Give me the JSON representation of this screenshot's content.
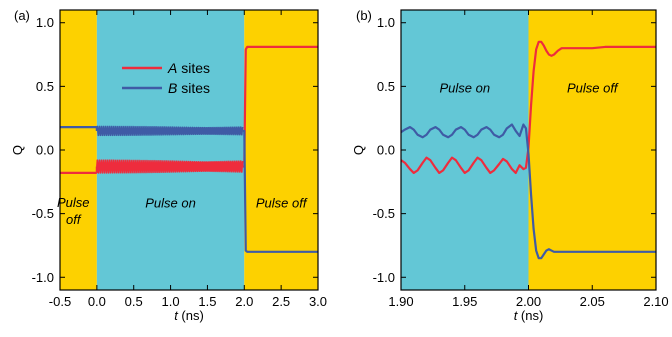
{
  "colors": {
    "pulse_off_bg": "#FDD100",
    "pulse_on_bg": "#63C7D6",
    "series_a": "#EE2C3D",
    "series_b": "#3F5BA5",
    "axis": "#000000"
  },
  "chart_data": [
    {
      "type": "line",
      "panel_label": "(a)",
      "xlabel_var": "t",
      "xlabel_unit": " (ns)",
      "ylabel": "Q",
      "xlim": [
        -0.5,
        3.0
      ],
      "ylim": [
        -1.1,
        1.1
      ],
      "x_ticks": [
        -0.5,
        0.0,
        0.5,
        1.0,
        1.5,
        2.0,
        2.5,
        3.0
      ],
      "x_tick_labels": [
        "-0.5",
        "0.0",
        "0.5",
        "1.0",
        "1.5",
        "2.0",
        "2.5",
        "3.0"
      ],
      "y_ticks": [
        1.0,
        0.5,
        0.0,
        -0.5,
        -1.0
      ],
      "y_tick_labels": [
        "1.0",
        "0.5",
        "0.0",
        "-0.5",
        "-1.0"
      ],
      "regions": [
        {
          "x0": -0.5,
          "x1": 0.0,
          "kind": "pulse_off",
          "label": "Pulse\noff",
          "label_x": -0.32,
          "label_y": -0.51
        },
        {
          "x0": 0.0,
          "x1": 2.0,
          "kind": "pulse_on",
          "label": "Pulse on",
          "label_x": 1.0,
          "label_y": -0.45
        },
        {
          "x0": 2.0,
          "x1": 3.0,
          "kind": "pulse_off",
          "label": "Pulse off",
          "label_x": 2.5,
          "label_y": -0.45
        }
      ],
      "legend": {
        "position": "upper-center",
        "entries": [
          {
            "italic": "A",
            "text": " sites",
            "color_key": "series_a"
          },
          {
            "italic": "B",
            "text": " sites",
            "color_key": "series_b"
          }
        ]
      },
      "series": [
        {
          "name": "A sites",
          "color_key": "series_a",
          "segments": [
            {
              "kind": "line",
              "x": [
                -0.5,
                0.0
              ],
              "y": [
                -0.18,
                -0.18
              ]
            },
            {
              "kind": "line",
              "x": [
                0.0,
                0.0
              ],
              "y": [
                -0.18,
                -0.13
              ]
            },
            {
              "kind": "oscillation",
              "x0": 0.0,
              "x1": 1.98,
              "center": -0.13,
              "amplitude": 0.05,
              "period": 0.027
            },
            {
              "kind": "line",
              "x": [
                1.98,
                2.0,
                2.02,
                2.04,
                3.0
              ],
              "y": [
                -0.13,
                -0.13,
                0.79,
                0.81,
                0.81
              ]
            }
          ]
        },
        {
          "name": "B sites",
          "color_key": "series_b",
          "segments": [
            {
              "kind": "line",
              "x": [
                -0.5,
                0.0
              ],
              "y": [
                0.18,
                0.18
              ]
            },
            {
              "kind": "line",
              "x": [
                0.0,
                0.0
              ],
              "y": [
                0.18,
                0.15
              ]
            },
            {
              "kind": "oscillation",
              "x0": 0.0,
              "x1": 1.98,
              "center": 0.15,
              "amplitude": 0.035,
              "period": 0.027
            },
            {
              "kind": "line",
              "x": [
                1.98,
                2.0,
                2.02,
                2.04,
                3.0
              ],
              "y": [
                0.15,
                0.15,
                -0.79,
                -0.8,
                -0.8
              ]
            }
          ]
        }
      ]
    },
    {
      "type": "line",
      "panel_label": "(b)",
      "xlabel_var": "t",
      "xlabel_unit": " (ns)",
      "ylabel": "Q",
      "xlim": [
        1.9,
        2.1
      ],
      "ylim": [
        -1.1,
        1.1
      ],
      "x_ticks": [
        1.9,
        1.95,
        2.0,
        2.05,
        2.1
      ],
      "x_tick_labels": [
        "1.90",
        "1.95",
        "2.00",
        "2.05",
        "2.10"
      ],
      "y_ticks": [
        1.0,
        0.5,
        0.0,
        -0.5,
        -1.0
      ],
      "y_tick_labels": [
        "1.0",
        "0.5",
        "0.0",
        "-0.5",
        "-1.0"
      ],
      "regions": [
        {
          "x0": 1.9,
          "x1": 2.0,
          "kind": "pulse_on",
          "label": "Pulse on",
          "label_x": 1.95,
          "label_y": 0.45
        },
        {
          "x0": 2.0,
          "x1": 2.1,
          "kind": "pulse_off",
          "label": "Pulse off",
          "label_x": 2.05,
          "label_y": 0.45
        }
      ],
      "series": [
        {
          "name": "A sites",
          "color_key": "series_a",
          "x": [
            1.9,
            1.903,
            1.907,
            1.91,
            1.913,
            1.917,
            1.92,
            1.923,
            1.927,
            1.93,
            1.933,
            1.937,
            1.94,
            1.943,
            1.947,
            1.95,
            1.953,
            1.957,
            1.96,
            1.963,
            1.967,
            1.97,
            1.973,
            1.977,
            1.98,
            1.983,
            1.987,
            1.99,
            1.993,
            1.996,
            1.998,
            2.0,
            2.002,
            2.004,
            2.006,
            2.008,
            2.01,
            2.012,
            2.014,
            2.016,
            2.018,
            2.02,
            2.023,
            2.026,
            2.03,
            2.035,
            2.04,
            2.045,
            2.05,
            2.06,
            2.07,
            2.08,
            2.09,
            2.1
          ],
          "y": [
            -0.08,
            -0.1,
            -0.15,
            -0.18,
            -0.16,
            -0.1,
            -0.06,
            -0.08,
            -0.14,
            -0.18,
            -0.16,
            -0.1,
            -0.06,
            -0.08,
            -0.14,
            -0.18,
            -0.16,
            -0.1,
            -0.06,
            -0.08,
            -0.14,
            -0.18,
            -0.16,
            -0.11,
            -0.07,
            -0.09,
            -0.15,
            -0.18,
            -0.12,
            -0.15,
            -0.14,
            0.02,
            0.35,
            0.62,
            0.79,
            0.85,
            0.85,
            0.82,
            0.78,
            0.75,
            0.74,
            0.75,
            0.78,
            0.8,
            0.8,
            0.8,
            0.8,
            0.8,
            0.8,
            0.81,
            0.81,
            0.81,
            0.81,
            0.81
          ]
        },
        {
          "name": "B sites",
          "color_key": "series_b",
          "x": [
            1.9,
            1.903,
            1.907,
            1.91,
            1.913,
            1.917,
            1.92,
            1.923,
            1.927,
            1.93,
            1.933,
            1.937,
            1.94,
            1.943,
            1.947,
            1.95,
            1.953,
            1.957,
            1.96,
            1.963,
            1.967,
            1.97,
            1.973,
            1.977,
            1.98,
            1.983,
            1.987,
            1.99,
            1.993,
            1.996,
            1.998,
            2.0,
            2.002,
            2.004,
            2.006,
            2.008,
            2.01,
            2.012,
            2.014,
            2.016,
            2.018,
            2.02,
            2.023,
            2.026,
            2.03,
            2.035,
            2.04,
            2.045,
            2.05,
            2.06,
            2.07,
            2.08,
            2.09,
            2.1
          ],
          "y": [
            0.14,
            0.16,
            0.18,
            0.16,
            0.12,
            0.1,
            0.12,
            0.16,
            0.18,
            0.16,
            0.12,
            0.1,
            0.12,
            0.16,
            0.18,
            0.16,
            0.12,
            0.1,
            0.12,
            0.16,
            0.18,
            0.16,
            0.12,
            0.1,
            0.12,
            0.17,
            0.2,
            0.15,
            0.11,
            0.2,
            0.17,
            -0.03,
            -0.35,
            -0.62,
            -0.79,
            -0.85,
            -0.85,
            -0.82,
            -0.79,
            -0.78,
            -0.79,
            -0.8,
            -0.8,
            -0.8,
            -0.8,
            -0.8,
            -0.8,
            -0.8,
            -0.8,
            -0.8,
            -0.8,
            -0.8,
            -0.8,
            -0.8
          ]
        }
      ]
    }
  ]
}
